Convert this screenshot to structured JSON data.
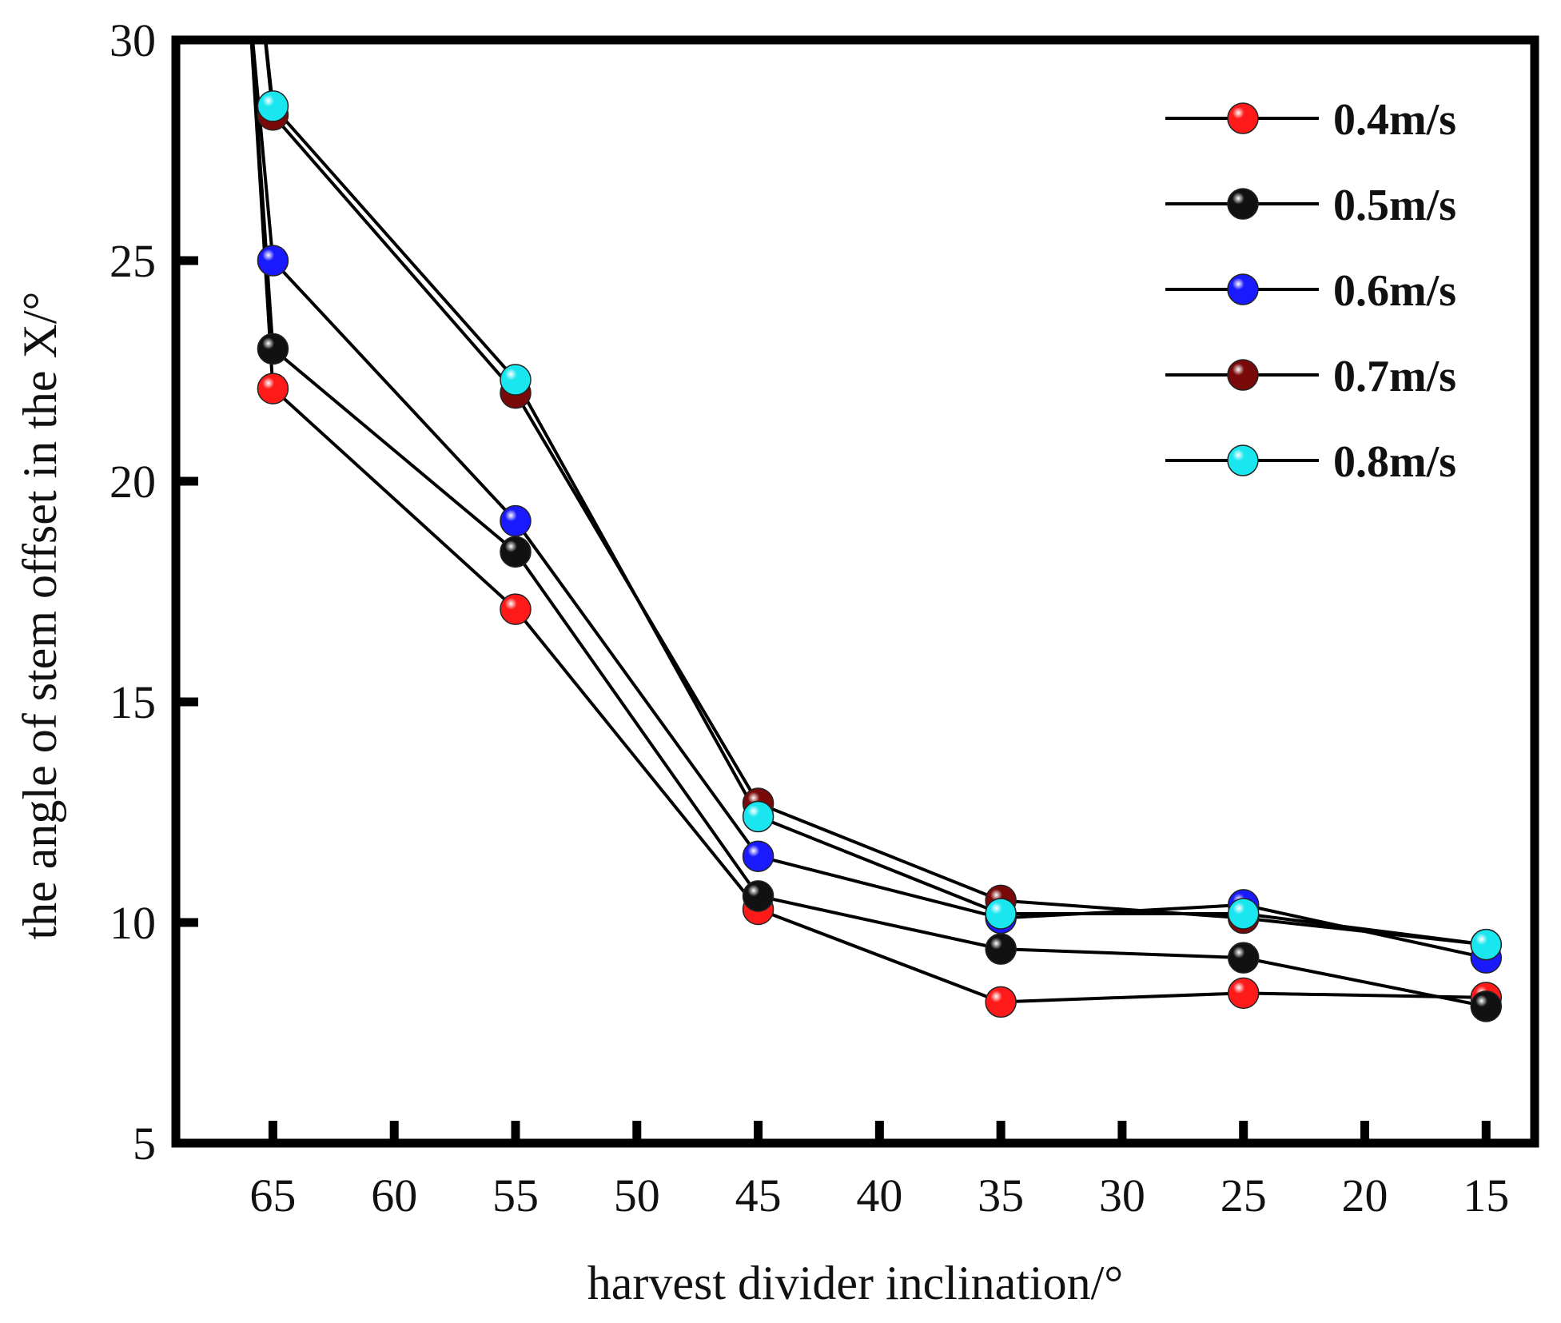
{
  "chart_data": {
    "type": "line",
    "title": "",
    "xlabel": "harvest divider inclination/°",
    "ylabel": "the angle of stem offset in the X/°",
    "xlim": [
      69,
      13
    ],
    "ylim": [
      5,
      30
    ],
    "x": [
      65,
      55,
      45,
      35,
      25,
      15
    ],
    "x_ticks": [
      65,
      60,
      55,
      50,
      45,
      40,
      35,
      30,
      25,
      20,
      15
    ],
    "y_ticks": [
      5,
      10,
      15,
      20,
      25,
      30
    ],
    "legend_position": "top-right",
    "series": [
      {
        "name": "0.4m/s",
        "color": "#ff1a1a",
        "values": [
          22.1,
          17.1,
          10.3,
          8.2,
          8.4,
          8.3
        ],
        "start": [
          66,
          31
        ]
      },
      {
        "name": "0.5m/s",
        "color": "#111111",
        "values": [
          23.0,
          18.4,
          10.6,
          9.4,
          9.2,
          8.1
        ],
        "start": [
          66,
          31
        ]
      },
      {
        "name": "0.6m/s",
        "color": "#1a1aff",
        "values": [
          25.0,
          19.1,
          11.5,
          10.1,
          10.4,
          9.2
        ],
        "start": [
          66,
          31
        ]
      },
      {
        "name": "0.7m/s",
        "color": "#7a0a0a",
        "values": [
          28.3,
          22.0,
          12.7,
          10.5,
          10.1,
          9.5
        ],
        "start": [
          65.5,
          31
        ]
      },
      {
        "name": "0.8m/s",
        "color": "#1ae6f0",
        "values": [
          28.5,
          22.3,
          12.4,
          10.2,
          10.2,
          9.5
        ],
        "start": [
          65.5,
          31
        ]
      }
    ]
  }
}
